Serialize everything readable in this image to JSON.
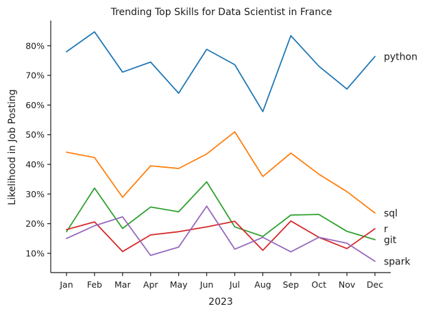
{
  "chart_data": {
    "type": "line",
    "title": "Trending Top Skills for Data Scientist in France",
    "xlabel": "2023",
    "ylabel": "Likelihood in Job Posting",
    "categories": [
      "Jan",
      "Feb",
      "Mar",
      "Apr",
      "May",
      "Jun",
      "Jul",
      "Aug",
      "Sep",
      "Oct",
      "Nov",
      "Dec"
    ],
    "yticks": [
      "10%",
      "20%",
      "30%",
      "40%",
      "50%",
      "60%",
      "70%",
      "80%"
    ],
    "ytick_values": [
      10,
      20,
      30,
      40,
      50,
      60,
      70,
      80
    ],
    "ylim": [
      3.5,
      88.5
    ],
    "grid": false,
    "legend": "none",
    "series": [
      {
        "name": "python",
        "color": "#1f77b4",
        "values": [
          78.0,
          84.7,
          71.1,
          74.5,
          64.0,
          78.8,
          73.6,
          57.8,
          83.4,
          73.1,
          65.4,
          76.4
        ]
      },
      {
        "name": "sql",
        "color": "#ff7f0e",
        "values": [
          44.1,
          42.3,
          28.9,
          39.5,
          38.6,
          43.5,
          51.0,
          35.9,
          43.8,
          36.7,
          30.8,
          23.6
        ]
      },
      {
        "name": "git",
        "color": "#2ca02c",
        "values": [
          17.3,
          32.0,
          18.4,
          25.6,
          24.0,
          34.1,
          18.9,
          15.7,
          22.9,
          23.1,
          17.4,
          14.6
        ]
      },
      {
        "name": "r",
        "color": "#d62728",
        "values": [
          18.0,
          20.6,
          10.6,
          16.2,
          17.3,
          18.9,
          20.8,
          11.0,
          20.9,
          15.4,
          11.6,
          18.3
        ]
      },
      {
        "name": "spark",
        "color": "#9467bd",
        "values": [
          15.0,
          19.3,
          22.3,
          9.3,
          12.1,
          25.9,
          11.4,
          15.4,
          10.5,
          15.4,
          13.4,
          7.3
        ]
      }
    ]
  }
}
